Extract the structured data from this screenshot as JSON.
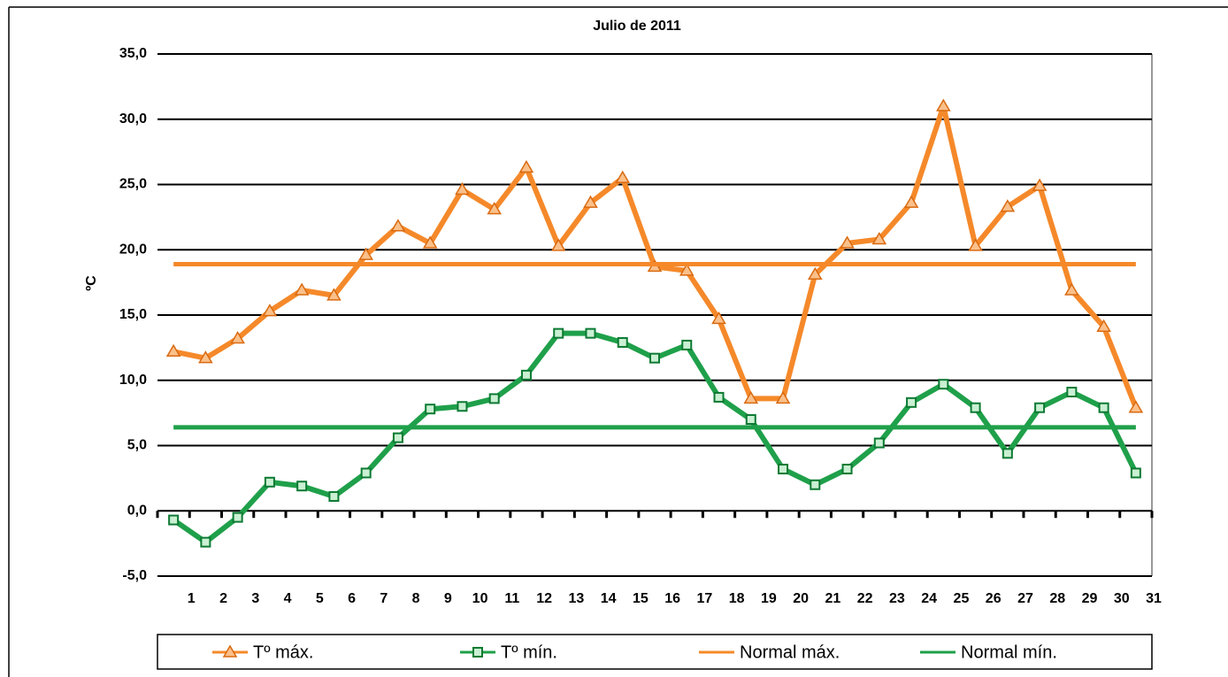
{
  "chart_data": {
    "type": "line",
    "title": "Julio de 2011",
    "y_label": "ºC",
    "categories": [
      "1",
      "2",
      "3",
      "4",
      "5",
      "6",
      "7",
      "8",
      "9",
      "10",
      "11",
      "12",
      "13",
      "14",
      "15",
      "16",
      "17",
      "18",
      "19",
      "20",
      "21",
      "22",
      "23",
      "24",
      "25",
      "26",
      "27",
      "28",
      "29",
      "30",
      "31"
    ],
    "series": [
      {
        "name": "Tº máx.",
        "color": "#f5892a",
        "marker": "triangle",
        "values": [
          12.2,
          11.7,
          13.2,
          15.3,
          16.9,
          16.5,
          19.6,
          21.8,
          20.5,
          24.6,
          23.1,
          26.3,
          20.3,
          23.6,
          25.5,
          18.7,
          18.4,
          14.7,
          8.6,
          8.6,
          18.1,
          20.5,
          20.8,
          23.6,
          31.0,
          20.3,
          23.3,
          24.9,
          16.9,
          14.1,
          7.9
        ]
      },
      {
        "name": "Tº mín.",
        "color": "#1fa04a",
        "marker": "square",
        "values": [
          -0.7,
          -2.4,
          -0.5,
          2.2,
          1.9,
          1.1,
          2.9,
          5.6,
          7.8,
          8.0,
          8.6,
          10.4,
          13.6,
          13.6,
          12.9,
          11.7,
          12.7,
          8.7,
          7.0,
          3.2,
          2.0,
          3.2,
          5.2,
          8.3,
          9.7,
          7.9,
          4.4,
          7.9,
          9.1,
          7.9,
          2.9
        ]
      },
      {
        "name": "Normal máx.",
        "color": "#f5892a",
        "marker": "none",
        "values": [
          18.9,
          18.9,
          18.9,
          18.9,
          18.9,
          18.9,
          18.9,
          18.9,
          18.9,
          18.9,
          18.9,
          18.9,
          18.9,
          18.9,
          18.9,
          18.9,
          18.9,
          18.9,
          18.9,
          18.9,
          18.9,
          18.9,
          18.9,
          18.9,
          18.9,
          18.9,
          18.9,
          18.9,
          18.9,
          18.9,
          18.9
        ]
      },
      {
        "name": "Normal mín.",
        "color": "#1fa04a",
        "marker": "none",
        "values": [
          6.4,
          6.4,
          6.4,
          6.4,
          6.4,
          6.4,
          6.4,
          6.4,
          6.4,
          6.4,
          6.4,
          6.4,
          6.4,
          6.4,
          6.4,
          6.4,
          6.4,
          6.4,
          6.4,
          6.4,
          6.4,
          6.4,
          6.4,
          6.4,
          6.4,
          6.4,
          6.4,
          6.4,
          6.4,
          6.4,
          6.4
        ]
      }
    ],
    "ylim": [
      -5,
      35
    ],
    "yticks": [
      {
        "value": -5,
        "label": "-5,0"
      },
      {
        "value": 0,
        "label": "0,0"
      },
      {
        "value": 5,
        "label": "5,0"
      },
      {
        "value": 10,
        "label": "10,0"
      },
      {
        "value": 15,
        "label": "15,0"
      },
      {
        "value": 20,
        "label": "20,0"
      },
      {
        "value": 25,
        "label": "25,0"
      },
      {
        "value": 30,
        "label": "30,0"
      },
      {
        "value": 35,
        "label": "35,0"
      }
    ],
    "grid": true,
    "legend": "bottom"
  }
}
